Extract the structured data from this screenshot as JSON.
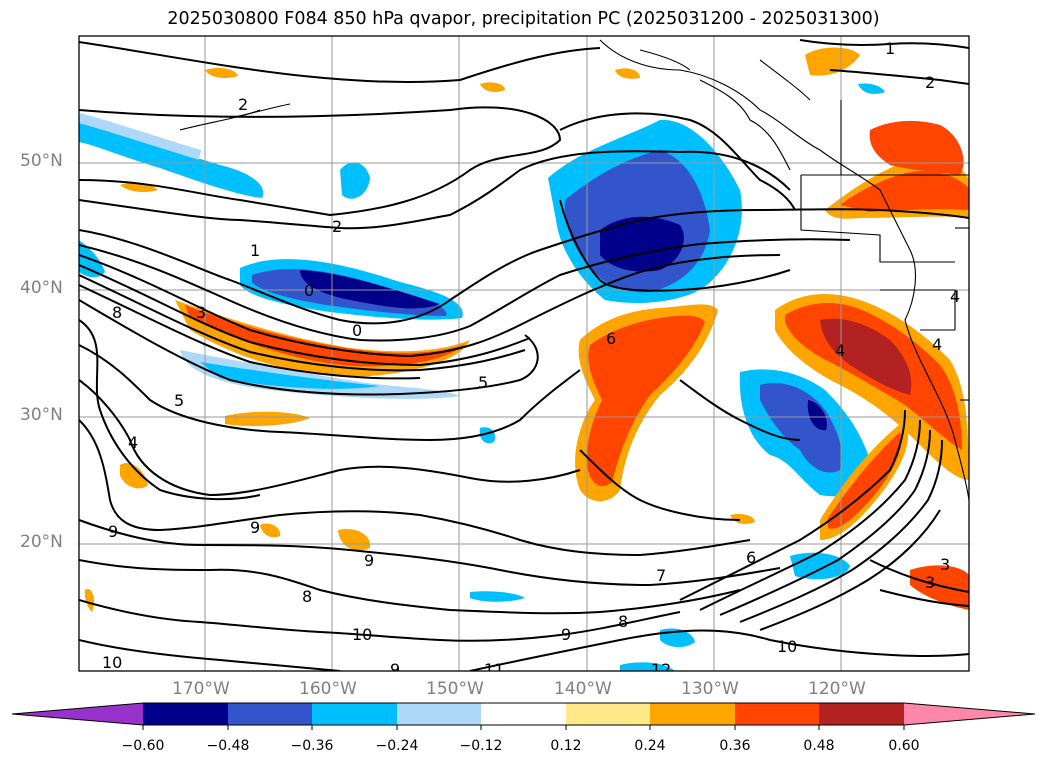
{
  "title": "2025030800 F084 850 hPa qvapor, precipitation PC (2025031200 - 2025031300)",
  "map": {
    "longitude_labels": [
      "170°W",
      "160°W",
      "150°W",
      "140°W",
      "130°W",
      "120°W"
    ],
    "latitude_labels": [
      "50°N",
      "40°N",
      "30°N",
      "20°N"
    ],
    "gridlines": true,
    "contour_labels": [
      "1",
      "2",
      "2",
      "1",
      "0",
      "0",
      "8",
      "3",
      "5",
      "5",
      "4",
      "6",
      "9",
      "9",
      "9",
      "8",
      "10",
      "10",
      "9",
      "11",
      "7",
      "6",
      "8",
      "9",
      "10",
      "12",
      "2",
      "3",
      "4",
      "4",
      "4",
      "3"
    ]
  },
  "colorbar": {
    "extend": "both",
    "tick_labels": [
      "−0.60",
      "−0.48",
      "−0.36",
      "−0.24",
      "−0.12",
      "0.12",
      "0.24",
      "0.36",
      "0.48",
      "0.60"
    ],
    "colors": [
      "#9932cc",
      "#00008b",
      "#3355cc",
      "#00bfff",
      "#add8f7",
      "#ffffff",
      "#ffe88a",
      "#ffa500",
      "#ff4500",
      "#b22222",
      "#ff88aa"
    ]
  }
}
